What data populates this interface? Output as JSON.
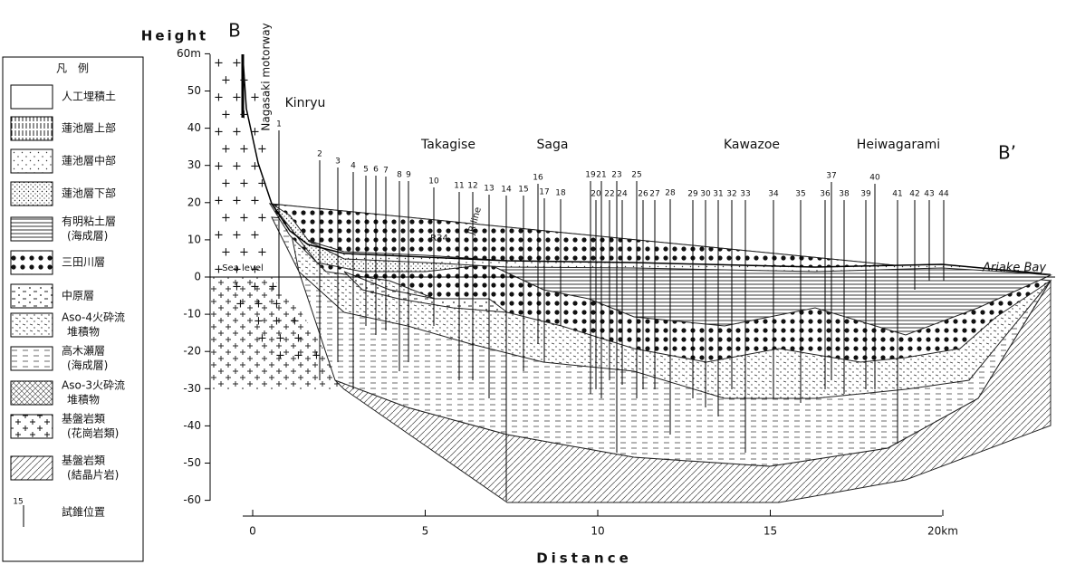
{
  "header": {
    "section_start": "B",
    "section_end": "B’"
  },
  "y_axis": {
    "title": "Height",
    "ticks": [
      {
        "value": 60,
        "label": "60m"
      },
      50,
      40,
      30,
      20,
      10,
      0,
      -10,
      -20,
      -30,
      -40,
      -50,
      -60
    ]
  },
  "x_axis": {
    "title": "Distance",
    "ticks": [
      0,
      5,
      10,
      15,
      {
        "value": 20,
        "label": "20km"
      }
    ]
  },
  "places": [
    "Kinryu",
    "Takagise",
    "Saga",
    "Kawazoe",
    "Heiwagarami"
  ],
  "annotations": {
    "sea_level": "Sea level",
    "bay": "Ariake  Bay",
    "motorway": "Nagasaki motorway",
    "road": "R34",
    "rail": "JR line"
  },
  "borings": [
    "1",
    "2",
    "3",
    "4",
    "5",
    "6",
    "7",
    "8",
    "9",
    "10",
    "11",
    "12",
    "13",
    "14",
    "15",
    "16",
    "17",
    "18",
    "19",
    "20",
    "21",
    "22",
    "23",
    "24",
    "25",
    "26",
    "27",
    "28",
    "29",
    "30",
    "31",
    "32",
    "33",
    "34",
    "35",
    "36",
    "37",
    "38",
    "39",
    "40",
    "41",
    "42",
    "43",
    "44"
  ],
  "legend": {
    "title": "凡　例",
    "items": [
      {
        "lines": [
          "人工埋積土"
        ]
      },
      {
        "lines": [
          "蓮池層上部"
        ]
      },
      {
        "lines": [
          "蓮池層中部"
        ]
      },
      {
        "lines": [
          "蓮池層下部"
        ]
      },
      {
        "lines": [
          "有明粘土層",
          "(海成層)"
        ]
      },
      {
        "lines": [
          "三田川層"
        ]
      },
      {
        "lines": [
          "中原層"
        ]
      },
      {
        "lines": [
          "Aso-4火砕流",
          "堆積物"
        ]
      },
      {
        "lines": [
          "高木瀬層",
          "(海成層)"
        ]
      },
      {
        "lines": [
          "Aso-3火砕流",
          "堆積物"
        ]
      },
      {
        "lines": [
          "基盤岩類",
          "(花崗岩類)"
        ]
      },
      {
        "lines": [
          "基盤岩類",
          "(結晶片岩)"
        ]
      },
      {
        "lines": [
          "試錐位置"
        ],
        "sample": "15"
      }
    ]
  }
}
